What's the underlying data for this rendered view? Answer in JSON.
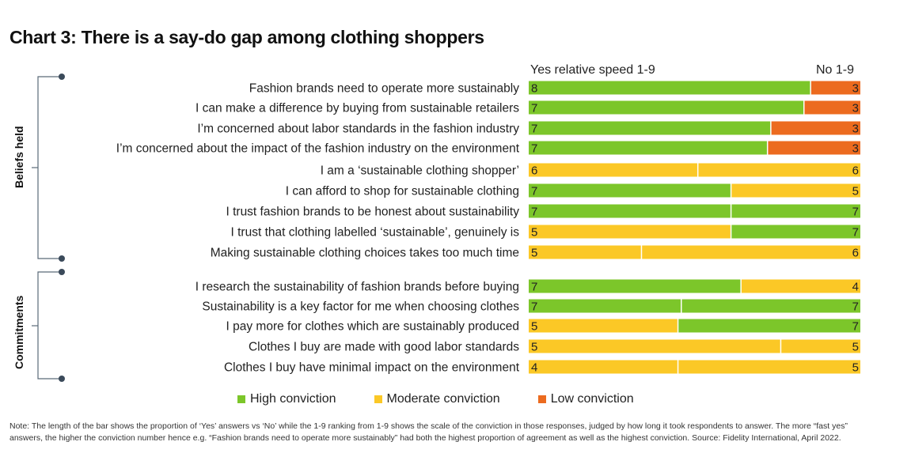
{
  "title": "Chart 3: There is a say-do gap among clothing shoppers",
  "header": {
    "yes_label": "Yes relative speed 1-9",
    "no_label": "No 1-9"
  },
  "groups": [
    {
      "label": "Beliefs held"
    },
    {
      "label": "Commitments"
    }
  ],
  "legend": [
    {
      "label": "High conviction",
      "color": "#7cc62a"
    },
    {
      "label": "Moderate conviction",
      "color": "#fbc826"
    },
    {
      "label": "Low conviction",
      "color": "#ec6b1f"
    }
  ],
  "note": "Note: The length of the bar shows the proportion of ‘Yes’ answers vs ‘No’ while the 1-9 ranking from 1-9 shows the scale of the conviction in those responses, judged by how long it took respondents to answer. The more “fast yes” answers, the higher the conviction number hence e.g. “Fashion brands need to operate more sustainably” had both the highest proportion of agreement as well as the highest conviction. Source: Fidelity International, April 2022.",
  "chart_data": {
    "type": "bar",
    "orientation": "horizontal-stacked-100",
    "title": "Chart 3: There is a say-do gap among clothing shoppers",
    "columns": [
      "Yes relative speed 1-9",
      "No 1-9"
    ],
    "conviction_colors": {
      "high": "#7cc62a",
      "moderate": "#fbc826",
      "low": "#ec6b1f"
    },
    "rows": [
      {
        "group": "Beliefs held",
        "label": "Fashion brands need to operate more sustainably",
        "yes_share": 0.85,
        "yes_score": 8,
        "yes_level": "high",
        "no_score": 3,
        "no_level": "low"
      },
      {
        "group": "Beliefs held",
        "label": "I can make a difference by buying from sustainable retailers",
        "yes_share": 0.83,
        "yes_score": 7,
        "yes_level": "high",
        "no_score": 3,
        "no_level": "low"
      },
      {
        "group": "Beliefs held",
        "label": "I’m concerned about labor standards in the fashion industry",
        "yes_share": 0.73,
        "yes_score": 7,
        "yes_level": "high",
        "no_score": 3,
        "no_level": "low"
      },
      {
        "group": "Beliefs held",
        "label": "I’m concerned about the impact of the fashion industry on the environment",
        "yes_share": 0.72,
        "yes_score": 7,
        "yes_level": "high",
        "no_score": 3,
        "no_level": "low"
      },
      {
        "group": "Beliefs held",
        "label": "I am a ‘sustainable clothing shopper’",
        "yes_share": 0.51,
        "yes_score": 6,
        "yes_level": "moderate",
        "no_score": 6,
        "no_level": "moderate"
      },
      {
        "group": "Beliefs held",
        "label": "I can afford to shop for sustainable clothing",
        "yes_share": 0.61,
        "yes_score": 7,
        "yes_level": "high",
        "no_score": 5,
        "no_level": "moderate"
      },
      {
        "group": "Beliefs held",
        "label": "I trust fashion brands to be honest about sustainability",
        "yes_share": 0.61,
        "yes_score": 7,
        "yes_level": "high",
        "no_score": 7,
        "no_level": "high"
      },
      {
        "group": "Beliefs held",
        "label": "I trust that clothing labelled ‘sustainable’, genuinely is",
        "yes_share": 0.61,
        "yes_score": 5,
        "yes_level": "moderate",
        "no_score": 7,
        "no_level": "high"
      },
      {
        "group": "Beliefs held",
        "label": "Making sustainable clothing choices takes too much time",
        "yes_share": 0.34,
        "yes_score": 5,
        "yes_level": "moderate",
        "no_score": 6,
        "no_level": "moderate"
      },
      {
        "group": "Commitments",
        "label": "I research the sustainability of fashion brands before buying",
        "yes_share": 0.64,
        "yes_score": 7,
        "yes_level": "high",
        "no_score": 4,
        "no_level": "moderate"
      },
      {
        "group": "Commitments",
        "label": "Sustainability is a key factor for me when choosing clothes",
        "yes_share": 0.46,
        "yes_score": 7,
        "yes_level": "high",
        "no_score": 7,
        "no_level": "high"
      },
      {
        "group": "Commitments",
        "label": "I pay more for clothes which are sustainably produced",
        "yes_share": 0.45,
        "yes_score": 5,
        "yes_level": "moderate",
        "no_score": 7,
        "no_level": "high"
      },
      {
        "group": "Commitments",
        "label": "Clothes I buy are made with good labor standards",
        "yes_share": 0.76,
        "yes_score": 5,
        "yes_level": "moderate",
        "no_score": 5,
        "no_level": "moderate"
      },
      {
        "group": "Commitments",
        "label": "Clothes I buy have minimal impact on the environment",
        "yes_share": 0.45,
        "yes_score": 4,
        "yes_level": "moderate",
        "no_score": 5,
        "no_level": "moderate"
      }
    ]
  }
}
